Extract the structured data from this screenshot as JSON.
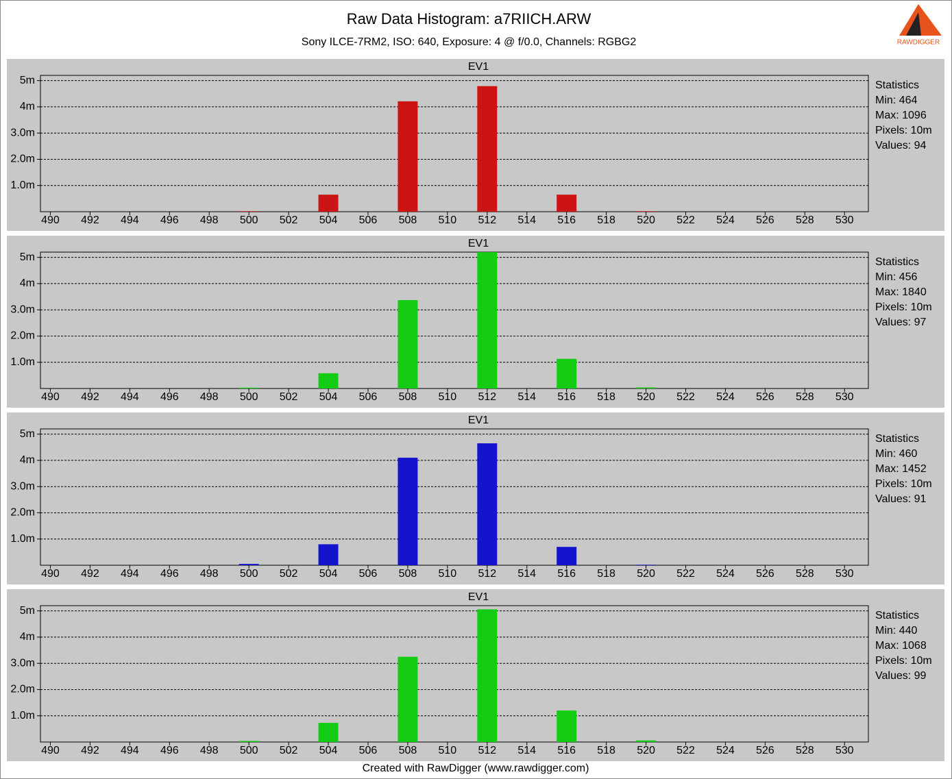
{
  "title": "Raw Data Histogram: a7RIICH.ARW",
  "subtitle": "Sony ILCE-7RM2, ISO: 640, Exposure: 4 @ f/0.0, Channels: RGBG2",
  "footer": "Created with RawDigger (www.rawdigger.com)",
  "logo": "RAWDIGGER",
  "chart_data": [
    {
      "type": "bar",
      "title": "EV1",
      "color": "#cc1414",
      "grid": true,
      "x": [
        500,
        504,
        508,
        512,
        516,
        520
      ],
      "values": [
        0.02,
        0.65,
        4.21,
        4.79,
        0.65,
        0.02
      ],
      "xlim": [
        489.5,
        531.2
      ],
      "xticks": [
        490,
        492,
        494,
        496,
        498,
        500,
        502,
        504,
        506,
        508,
        510,
        512,
        514,
        516,
        518,
        520,
        522,
        524,
        526,
        528,
        530
      ],
      "ylim": [
        0,
        5.2
      ],
      "yticks": [
        {
          "value": 1,
          "label": "1.0m"
        },
        {
          "value": 2,
          "label": "2.0m"
        },
        {
          "value": 3,
          "label": "3.0m"
        },
        {
          "value": 4,
          "label": "4m"
        },
        {
          "value": 5,
          "label": "5m"
        }
      ],
      "stats_title": "Statistics",
      "stats": [
        "Min: 464",
        "Max: 1096",
        "Pixels: 10m",
        "Values: 94"
      ]
    },
    {
      "type": "bar",
      "title": "EV1",
      "color": "#14cc14",
      "grid": true,
      "x": [
        500,
        504,
        508,
        512,
        516,
        520
      ],
      "values": [
        0.03,
        0.58,
        3.37,
        5.2,
        1.13,
        0.04
      ],
      "xlim": [
        489.5,
        531.2
      ],
      "xticks": [
        490,
        492,
        494,
        496,
        498,
        500,
        502,
        504,
        506,
        508,
        510,
        512,
        514,
        516,
        518,
        520,
        522,
        524,
        526,
        528,
        530
      ],
      "ylim": [
        0,
        5.2
      ],
      "yticks": [
        {
          "value": 1,
          "label": "1.0m"
        },
        {
          "value": 2,
          "label": "2.0m"
        },
        {
          "value": 3,
          "label": "3.0m"
        },
        {
          "value": 4,
          "label": "4m"
        },
        {
          "value": 5,
          "label": "5m"
        }
      ],
      "stats_title": "Statistics",
      "stats": [
        "Min: 456",
        "Max: 1840",
        "Pixels: 10m",
        "Values: 97"
      ]
    },
    {
      "type": "bar",
      "title": "EV1",
      "color": "#1414cc",
      "grid": true,
      "x": [
        500,
        504,
        508,
        512,
        516,
        520
      ],
      "values": [
        0.05,
        0.8,
        4.1,
        4.65,
        0.7,
        0.02
      ],
      "xlim": [
        489.5,
        531.2
      ],
      "xticks": [
        490,
        492,
        494,
        496,
        498,
        500,
        502,
        504,
        506,
        508,
        510,
        512,
        514,
        516,
        518,
        520,
        522,
        524,
        526,
        528,
        530
      ],
      "ylim": [
        0,
        5.2
      ],
      "yticks": [
        {
          "value": 1,
          "label": "1.0m"
        },
        {
          "value": 2,
          "label": "2.0m"
        },
        {
          "value": 3,
          "label": "3.0m"
        },
        {
          "value": 4,
          "label": "4m"
        },
        {
          "value": 5,
          "label": "5m"
        }
      ],
      "stats_title": "Statistics",
      "stats": [
        "Min: 460",
        "Max: 1452",
        "Pixels: 10m",
        "Values: 91"
      ]
    },
    {
      "type": "bar",
      "title": "EV1",
      "color": "#14cc14",
      "grid": true,
      "x": [
        500,
        504,
        508,
        512,
        516,
        520
      ],
      "values": [
        0.04,
        0.73,
        3.25,
        5.06,
        1.2,
        0.06
      ],
      "xlim": [
        489.5,
        531.2
      ],
      "xticks": [
        490,
        492,
        494,
        496,
        498,
        500,
        502,
        504,
        506,
        508,
        510,
        512,
        514,
        516,
        518,
        520,
        522,
        524,
        526,
        528,
        530
      ],
      "ylim": [
        0,
        5.2
      ],
      "yticks": [
        {
          "value": 1,
          "label": "1.0m"
        },
        {
          "value": 2,
          "label": "2.0m"
        },
        {
          "value": 3,
          "label": "3.0m"
        },
        {
          "value": 4,
          "label": "4m"
        },
        {
          "value": 5,
          "label": "5m"
        }
      ],
      "stats_title": "Statistics",
      "stats": [
        "Min: 440",
        "Max: 1068",
        "Pixels: 10m",
        "Values: 99"
      ]
    }
  ]
}
